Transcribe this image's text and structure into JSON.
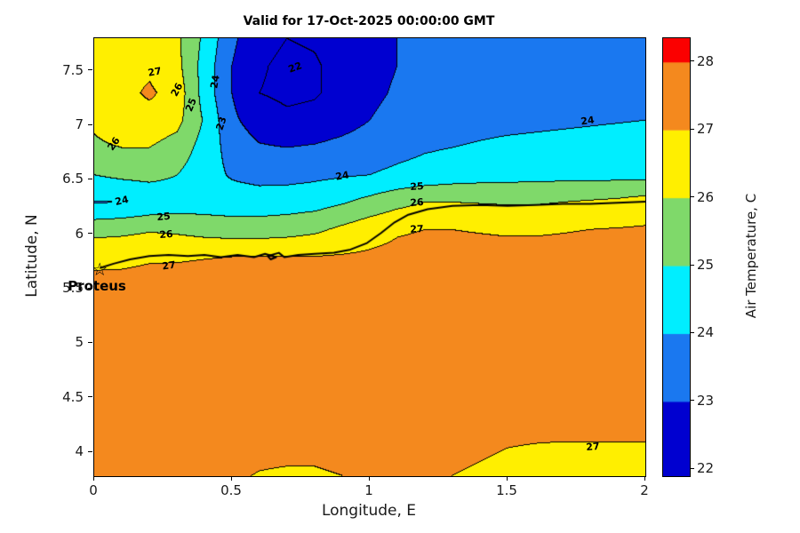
{
  "chart_data": {
    "type": "filled_contour",
    "title": "Valid for 17-Oct-2025 00:00:00 GMT",
    "xlabel": "Longitude, E",
    "ylabel": "Latitude, N",
    "x_range": [
      0,
      2
    ],
    "y_range": [
      3.78,
      7.8
    ],
    "x_ticks": [
      0,
      0.5,
      1,
      1.5,
      2
    ],
    "y_ticks": [
      4,
      4.5,
      5,
      5.5,
      6,
      6.5,
      7,
      7.5
    ],
    "grid_on": false,
    "legend": "colorbar-right",
    "contour_levels": [
      22,
      23,
      24,
      25,
      26,
      27,
      28
    ],
    "temperature_grid": {
      "units": "C",
      "lon_min": 0,
      "lon_max": 2,
      "lat_top": 7.8,
      "lat_bottom": 3.78,
      "values": [
        [
          26.3,
          26.5,
          26.6,
          26.2,
          24.8,
          23.2,
          22.3,
          22.0,
          22.1,
          22.4,
          22.8,
          23.0,
          23.2,
          23.3,
          23.4,
          23.5,
          23.5,
          23.5,
          23.4,
          23.4,
          23.3
        ],
        [
          26.4,
          26.6,
          26.8,
          26.3,
          24.6,
          23.0,
          22.1,
          21.8,
          21.9,
          22.3,
          22.7,
          23.0,
          23.2,
          23.3,
          23.4,
          23.5,
          23.5,
          23.5,
          23.5,
          23.4,
          23.4
        ],
        [
          26.5,
          26.7,
          27.15,
          26.6,
          24.6,
          23.0,
          22.0,
          21.8,
          21.9,
          22.3,
          22.8,
          23.1,
          23.3,
          23.4,
          23.5,
          23.6,
          23.6,
          23.6,
          23.6,
          23.5,
          23.5
        ],
        [
          26.1,
          26.4,
          26.6,
          26.3,
          24.9,
          23.2,
          22.5,
          22.2,
          22.3,
          22.6,
          23.0,
          23.3,
          23.5,
          23.6,
          23.7,
          23.75,
          23.8,
          23.85,
          23.9,
          23.95,
          24.0
        ],
        [
          25.9,
          26.0,
          26.0,
          25.6,
          24.6,
          23.6,
          23.1,
          23.0,
          23.1,
          23.3,
          23.5,
          23.7,
          23.9,
          24.0,
          24.1,
          24.2,
          24.25,
          24.3,
          24.35,
          24.4,
          24.45
        ],
        [
          25.0,
          25.2,
          25.3,
          25.0,
          24.4,
          23.9,
          23.7,
          23.7,
          23.8,
          23.9,
          24.0,
          24.2,
          24.35,
          24.5,
          24.6,
          24.65,
          24.7,
          24.7,
          24.7,
          24.7,
          24.7
        ],
        [
          23.95,
          24.0,
          24.2,
          24.45,
          24.5,
          24.45,
          24.45,
          24.5,
          24.6,
          24.9,
          25.3,
          25.7,
          26.0,
          26.0,
          25.95,
          25.9,
          25.9,
          26.0,
          26.1,
          26.2,
          26.4
        ],
        [
          25.6,
          25.7,
          25.9,
          25.8,
          25.6,
          25.5,
          25.5,
          25.6,
          25.8,
          26.2,
          26.6,
          26.9,
          27.0,
          27.0,
          26.95,
          26.9,
          26.9,
          26.95,
          27.0,
          27.05,
          27.1
        ],
        [
          26.9,
          26.9,
          26.95,
          26.95,
          26.98,
          27.0,
          27.0,
          27.0,
          27.02,
          27.08,
          27.15,
          27.25,
          27.3,
          27.3,
          27.3,
          27.3,
          27.3,
          27.3,
          27.3,
          27.32,
          27.35
        ],
        [
          27.1,
          27.12,
          27.15,
          27.18,
          27.2,
          27.22,
          27.22,
          27.25,
          27.25,
          27.28,
          27.3,
          27.35,
          27.4,
          27.4,
          27.4,
          27.4,
          27.4,
          27.4,
          27.4,
          27.4,
          27.4
        ],
        [
          27.15,
          27.2,
          27.25,
          27.3,
          27.3,
          27.3,
          27.3,
          27.3,
          27.3,
          27.3,
          27.35,
          27.4,
          27.4,
          27.4,
          27.4,
          27.4,
          27.4,
          27.4,
          27.4,
          27.4,
          27.4
        ],
        [
          27.2,
          27.3,
          27.3,
          27.3,
          27.3,
          27.3,
          27.3,
          27.3,
          27.3,
          27.35,
          27.4,
          27.4,
          27.4,
          27.4,
          27.4,
          27.4,
          27.4,
          27.4,
          27.4,
          27.4,
          27.4
        ],
        [
          27.25,
          27.3,
          27.3,
          27.3,
          27.3,
          27.3,
          27.3,
          27.3,
          27.3,
          27.35,
          27.4,
          27.4,
          27.4,
          27.4,
          27.4,
          27.35,
          27.35,
          27.3,
          27.3,
          27.3,
          27.3
        ],
        [
          27.3,
          27.3,
          27.3,
          27.3,
          27.3,
          27.3,
          27.3,
          27.3,
          27.3,
          27.3,
          27.35,
          27.35,
          27.3,
          27.3,
          27.3,
          27.25,
          27.2,
          27.2,
          27.2,
          27.2,
          27.2
        ],
        [
          27.3,
          27.3,
          27.3,
          27.3,
          27.25,
          27.25,
          27.2,
          27.2,
          27.2,
          27.25,
          27.3,
          27.3,
          27.25,
          27.2,
          27.15,
          27.1,
          27.1,
          27.1,
          27.1,
          27.1,
          27.1
        ],
        [
          27.25,
          27.25,
          27.25,
          27.2,
          27.2,
          27.15,
          27.1,
          27.1,
          27.1,
          27.15,
          27.2,
          27.2,
          27.15,
          27.1,
          27.05,
          27.0,
          26.98,
          26.97,
          26.97,
          26.97,
          26.97
        ],
        [
          27.2,
          27.2,
          27.2,
          27.2,
          27.15,
          27.05,
          26.98,
          26.95,
          26.95,
          27.0,
          27.05,
          27.1,
          27.05,
          27.0,
          26.95,
          26.9,
          26.88,
          26.87,
          26.87,
          26.87,
          26.87
        ]
      ]
    },
    "contour_labels": [
      {
        "t": "22",
        "x": 0.73,
        "y": 7.53,
        "r": -20
      },
      {
        "t": "27",
        "x": 0.22,
        "y": 7.49,
        "r": -10
      },
      {
        "t": "26",
        "x": 0.3,
        "y": 7.33,
        "r": -62
      },
      {
        "t": "25",
        "x": 0.35,
        "y": 7.19,
        "r": -68
      },
      {
        "t": "24",
        "x": 0.44,
        "y": 7.4,
        "r": -80
      },
      {
        "t": "23",
        "x": 0.46,
        "y": 7.02,
        "r": -72
      },
      {
        "t": "26",
        "x": 0.07,
        "y": 6.83,
        "r": -55
      },
      {
        "t": "24",
        "x": 1.79,
        "y": 7.04,
        "r": -8
      },
      {
        "t": "24",
        "x": 0.9,
        "y": 6.54,
        "r": -10
      },
      {
        "t": "24",
        "x": 0.1,
        "y": 6.31,
        "r": -12
      },
      {
        "t": "25",
        "x": 0.25,
        "y": 6.16,
        "r": -6
      },
      {
        "t": "26",
        "x": 0.26,
        "y": 6.0,
        "r": -5
      },
      {
        "t": "27",
        "x": 0.27,
        "y": 5.71,
        "r": -8
      },
      {
        "t": "25",
        "x": 1.17,
        "y": 6.44,
        "r": -4
      },
      {
        "t": "26",
        "x": 1.17,
        "y": 6.29,
        "r": -4
      },
      {
        "t": "27",
        "x": 1.17,
        "y": 6.05,
        "r": -3
      },
      {
        "t": "27",
        "x": 1.81,
        "y": 4.05,
        "r": -5
      }
    ],
    "track": [
      [
        0.02,
        5.69
      ],
      [
        0.07,
        5.73
      ],
      [
        0.13,
        5.77
      ],
      [
        0.2,
        5.8
      ],
      [
        0.27,
        5.81
      ],
      [
        0.34,
        5.8
      ],
      [
        0.4,
        5.81
      ],
      [
        0.46,
        5.79
      ],
      [
        0.52,
        5.81
      ],
      [
        0.58,
        5.79
      ],
      [
        0.62,
        5.82
      ],
      [
        0.66,
        5.79
      ],
      [
        0.64,
        5.77
      ],
      [
        0.63,
        5.8
      ],
      [
        0.67,
        5.83
      ],
      [
        0.69,
        5.79
      ],
      [
        0.74,
        5.81
      ],
      [
        0.8,
        5.82
      ],
      [
        0.87,
        5.83
      ],
      [
        0.93,
        5.86
      ],
      [
        0.99,
        5.92
      ],
      [
        1.04,
        6.01
      ],
      [
        1.09,
        6.11
      ],
      [
        1.14,
        6.18
      ],
      [
        1.21,
        6.23
      ],
      [
        1.3,
        6.26
      ],
      [
        1.4,
        6.27
      ],
      [
        1.5,
        6.26
      ],
      [
        1.6,
        6.27
      ],
      [
        1.7,
        6.28
      ],
      [
        1.8,
        6.28
      ],
      [
        1.9,
        6.29
      ],
      [
        2.0,
        6.3
      ]
    ],
    "station": {
      "name": "Proteus",
      "lon": 0.02,
      "lat": 5.67,
      "marker": "star"
    },
    "colorbar": {
      "label": "Air Temperature, C",
      "ticks": [
        22,
        23,
        24,
        25,
        26,
        27,
        28
      ],
      "value_min": 21.9,
      "value_max": 28.35,
      "band_edges": [
        21.9,
        23,
        24,
        25,
        26,
        27,
        28,
        28.35
      ],
      "band_colors": [
        "#0000d0",
        "#1a78f0",
        "#00eeff",
        "#7fd96a",
        "#ffef00",
        "#f4891e",
        "#fb0000"
      ]
    }
  }
}
